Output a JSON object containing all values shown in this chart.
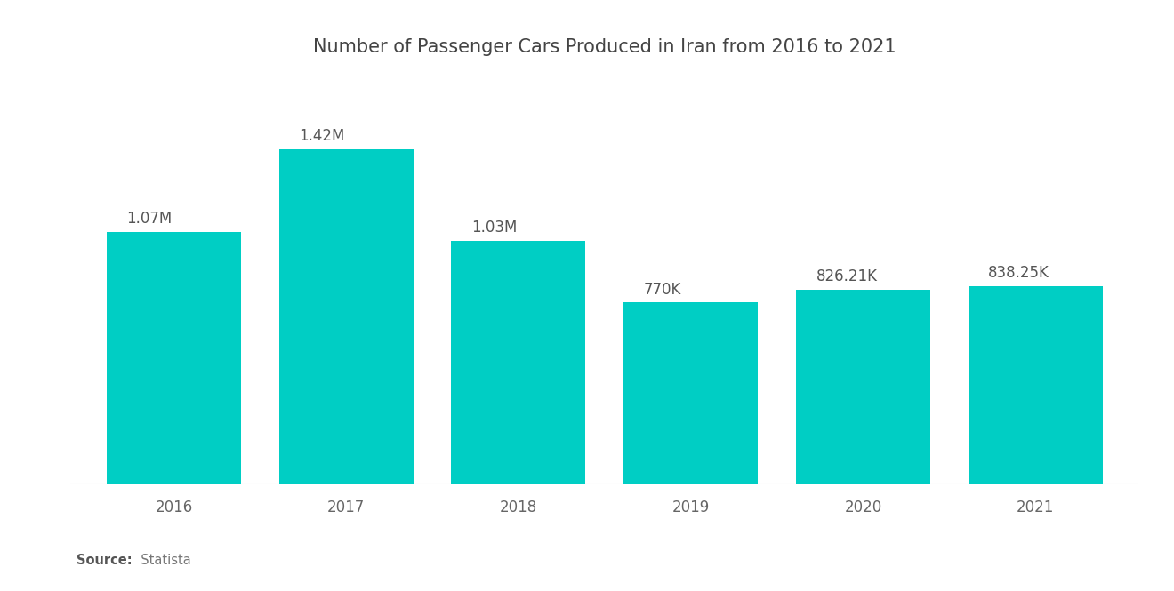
{
  "title": "Number of Passenger Cars Produced in Iran from 2016 to 2021",
  "categories": [
    "2016",
    "2017",
    "2018",
    "2019",
    "2020",
    "2021"
  ],
  "values": [
    1070000,
    1420000,
    1030000,
    770000,
    826210,
    838250
  ],
  "labels": [
    "1.07M",
    "1.42M",
    "1.03M",
    "770K",
    "826.21K",
    "838.25K"
  ],
  "bar_color": "#00CEC4",
  "background_color": "#ffffff",
  "title_fontsize": 15,
  "label_fontsize": 12,
  "tick_fontsize": 12,
  "source_bold": "Source:",
  "source_normal": "  Statista",
  "ylim": [
    0,
    1750000
  ],
  "bar_width": 0.78
}
